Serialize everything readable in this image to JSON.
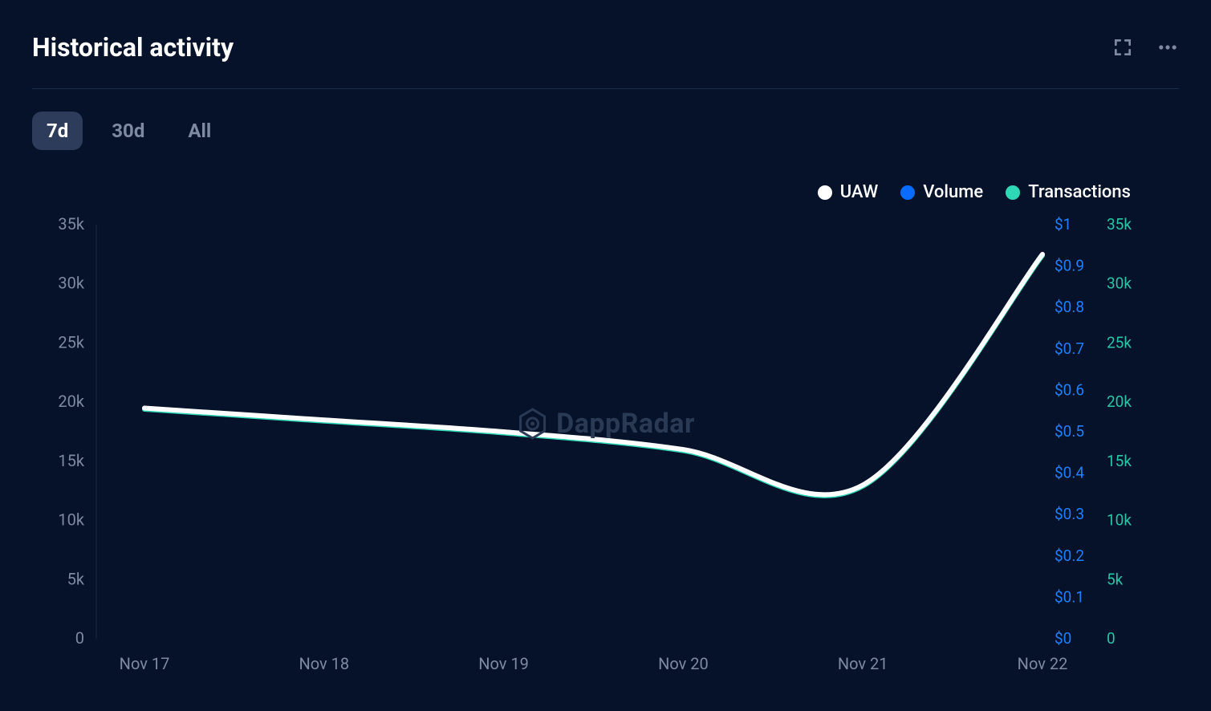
{
  "title": "Historical activity",
  "watermark": "DappRadar",
  "background_color": "#061229",
  "divider_color": "#1c2d4a",
  "time_ranges": {
    "options": [
      "7d",
      "30d",
      "All"
    ],
    "active_index": 0,
    "active_bg": "#2c3c5a",
    "active_fg": "#ffffff",
    "inactive_fg": "#7d8aa3",
    "fontsize": 24
  },
  "legend": {
    "items": [
      {
        "label": "UAW",
        "color": "#ffffff"
      },
      {
        "label": "Volume",
        "color": "#0a6cff"
      },
      {
        "label": "Transactions",
        "color": "#2ed8b6"
      }
    ],
    "label_color": "#ffffff",
    "label_fontsize": 22,
    "dot_size": 18
  },
  "chart": {
    "type": "line",
    "x_categories": [
      "Nov 17",
      "Nov 18",
      "Nov 19",
      "Nov 20",
      "Nov 21",
      "Nov 22"
    ],
    "series": {
      "uaw": {
        "color": "#ffffff",
        "line_width": 6,
        "values": [
          19500,
          18500,
          17500,
          16000,
          13000,
          32500
        ]
      },
      "transactions": {
        "color": "#2ed8b6",
        "line_width": 6,
        "values": [
          19500,
          18500,
          17500,
          16000,
          13000,
          32500
        ]
      },
      "volume": {
        "color": "#0a6cff",
        "line_width": 6,
        "values": [
          0,
          0,
          0,
          0,
          0,
          0
        ]
      }
    },
    "left_axis": {
      "label_color": "#7d8aa3",
      "ylim": [
        0,
        35000
      ],
      "tick_step": 5000,
      "ticks": [
        "35k",
        "30k",
        "25k",
        "20k",
        "15k",
        "10k",
        "5k",
        "0"
      ],
      "fontsize": 20
    },
    "right_axis_volume": {
      "label_color": "#1e7fff",
      "ylim": [
        0,
        1.0
      ],
      "tick_step": 0.1,
      "ticks": [
        "$1",
        "$0.9",
        "$0.8",
        "$0.7",
        "$0.6",
        "$0.5",
        "$0.4",
        "$0.3",
        "$0.2",
        "$0.1",
        "$0"
      ],
      "fontsize": 19
    },
    "right_axis_tx": {
      "label_color": "#26c6a6",
      "ylim": [
        0,
        35000
      ],
      "tick_step": 5000,
      "ticks": [
        "35k",
        "30k",
        "25k",
        "20k",
        "15k",
        "10k",
        "5k",
        "0"
      ],
      "fontsize": 19
    },
    "x_axis": {
      "label_color": "#7d8aa3",
      "fontsize": 20
    },
    "axis_line_color": "#1a2a45"
  }
}
